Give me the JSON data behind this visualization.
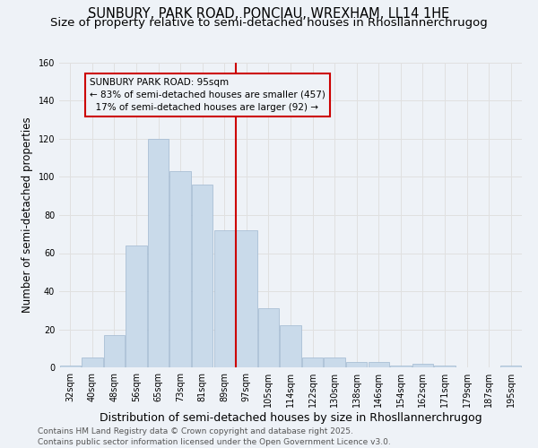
{
  "title": "SUNBURY, PARK ROAD, PONCIAU, WREXHAM, LL14 1HE",
  "subtitle": "Size of property relative to semi-detached houses in Rhosllannerchrugog",
  "xlabel": "Distribution of semi-detached houses by size in Rhosllannerchrugog",
  "ylabel": "Number of semi-detached properties",
  "categories": [
    "32sqm",
    "40sqm",
    "48sqm",
    "56sqm",
    "65sqm",
    "73sqm",
    "81sqm",
    "89sqm",
    "97sqm",
    "105sqm",
    "114sqm",
    "122sqm",
    "130sqm",
    "138sqm",
    "146sqm",
    "154sqm",
    "162sqm",
    "171sqm",
    "179sqm",
    "187sqm",
    "195sqm"
  ],
  "bar_values": [
    1,
    5,
    17,
    64,
    120,
    103,
    96,
    72,
    72,
    31,
    22,
    5,
    5,
    3,
    3,
    1,
    2,
    1,
    0,
    0,
    1
  ],
  "bar_color": "#c9daea",
  "bar_edge_color": "#a0b8d0",
  "pct_smaller": 83,
  "count_smaller": 457,
  "pct_larger": 17,
  "count_larger": 92,
  "annotation_box_color": "#cc0000",
  "grid_color": "#e0e0e0",
  "background_color": "#eef2f7",
  "ylim": [
    0,
    160
  ],
  "yticks": [
    0,
    20,
    40,
    60,
    80,
    100,
    120,
    140,
    160
  ],
  "title_fontsize": 10.5,
  "subtitle_fontsize": 9.5,
  "xlabel_fontsize": 9,
  "ylabel_fontsize": 8.5,
  "tick_fontsize": 7,
  "annot_fontsize": 7.5,
  "footer_fontsize": 6.5,
  "footer": "Contains HM Land Registry data © Crown copyright and database right 2025.\nContains public sector information licensed under the Open Government Licence v3.0."
}
